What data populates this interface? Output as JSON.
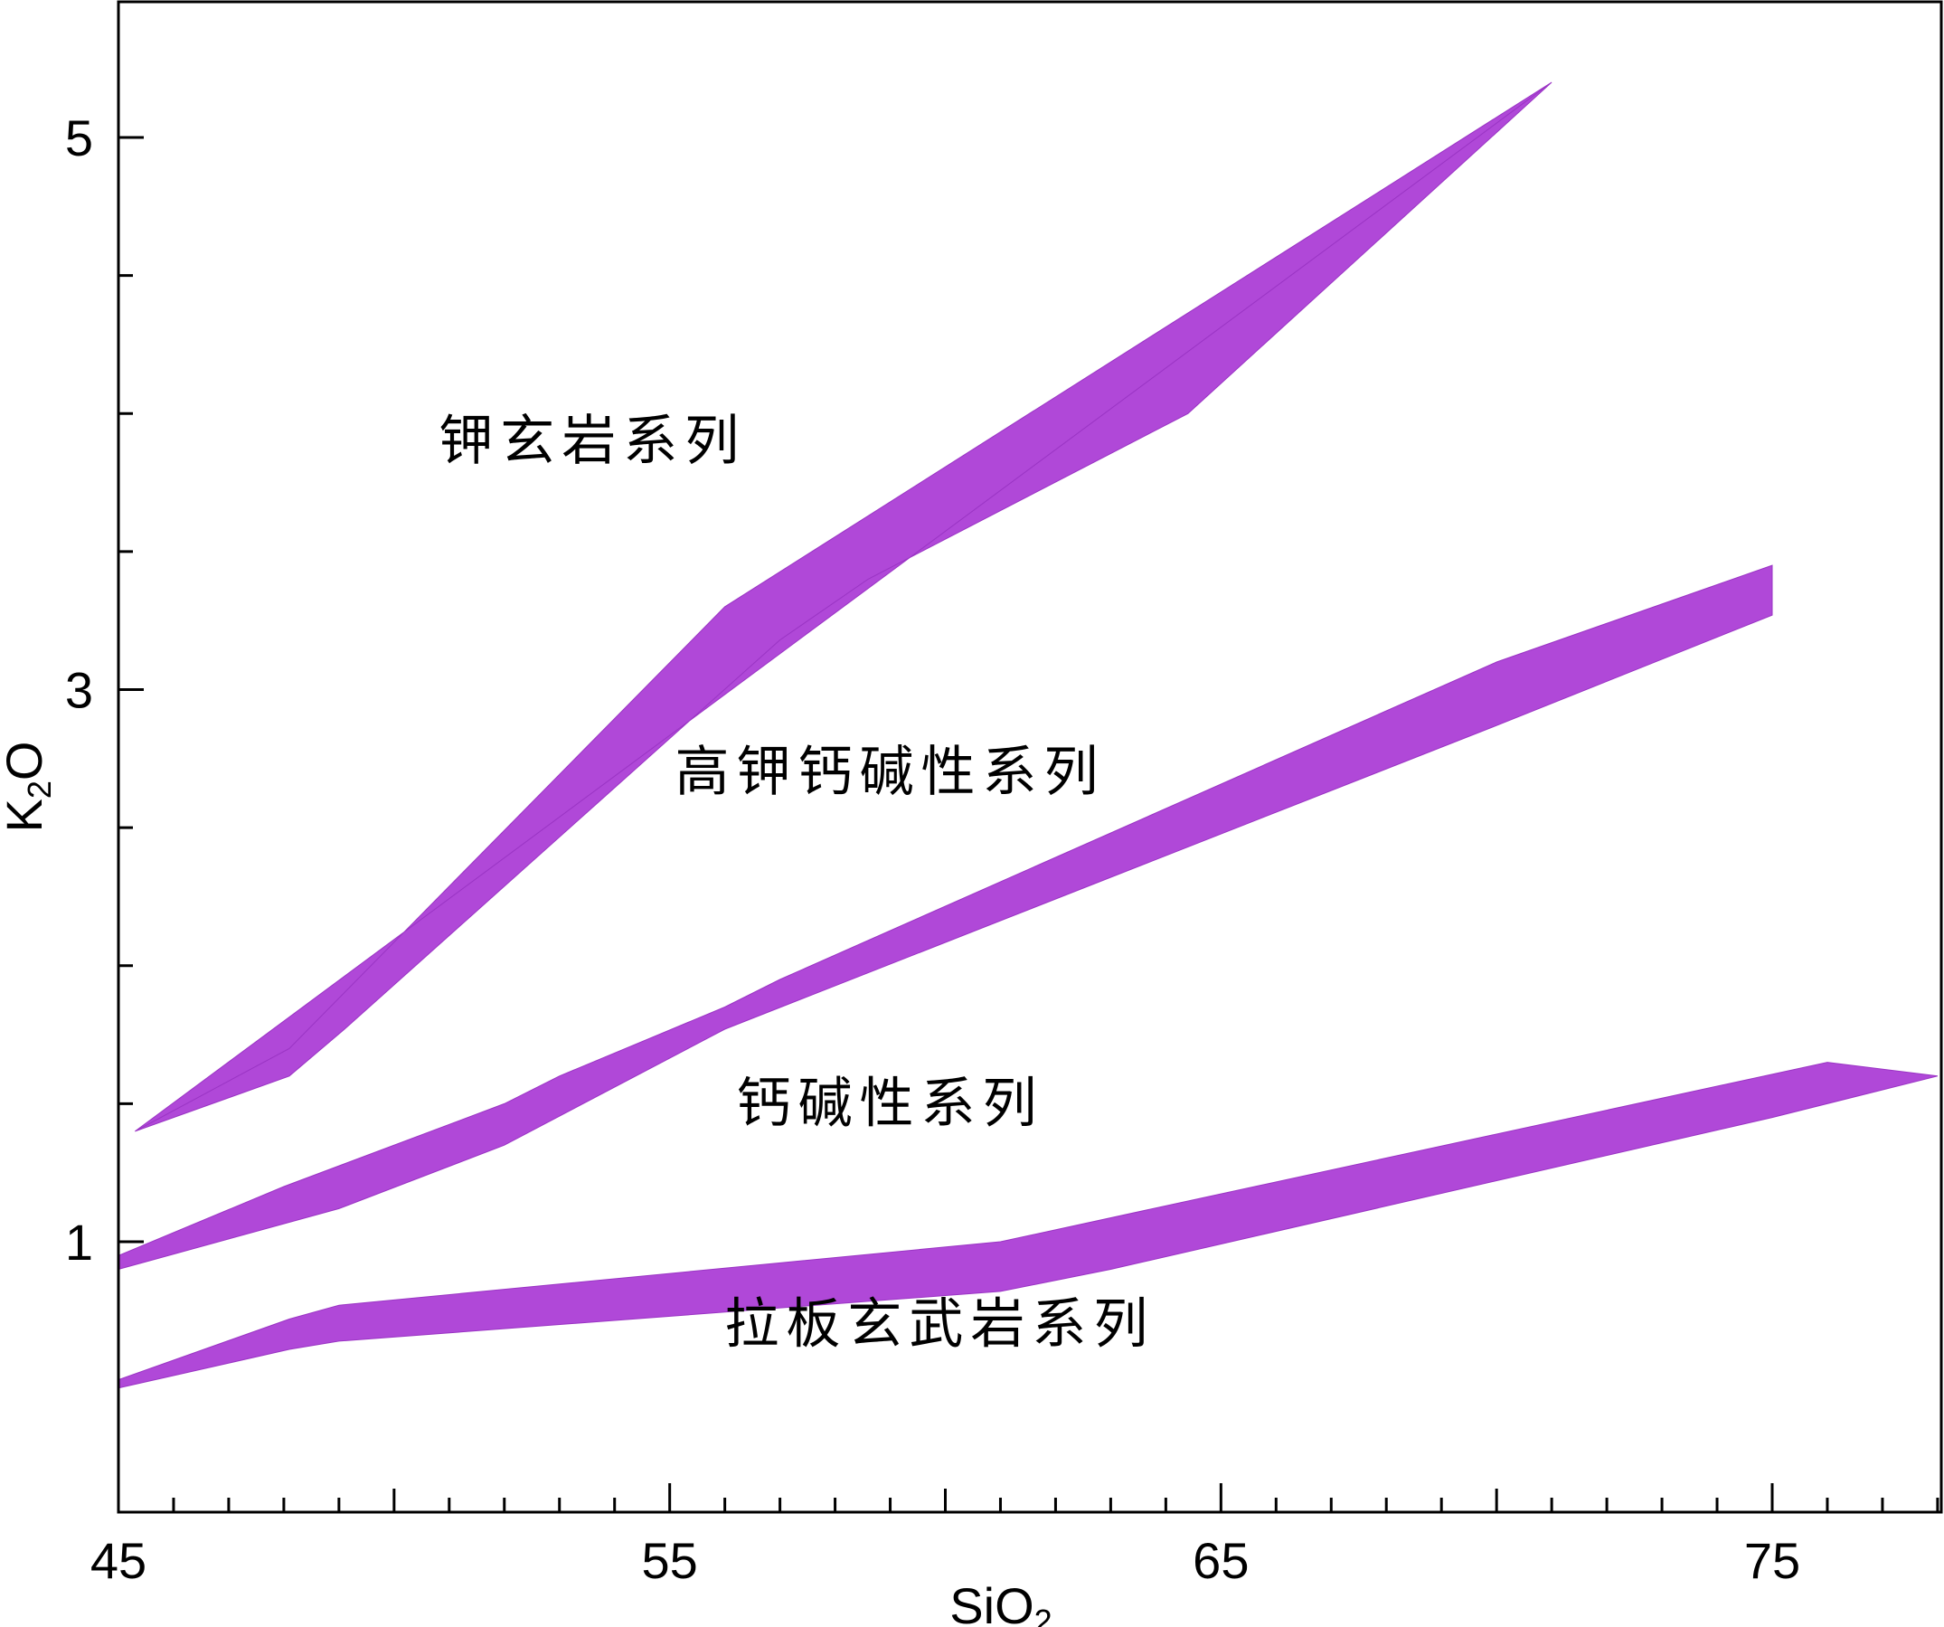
{
  "chart_data": {
    "type": "area",
    "xlabel": "SiO2",
    "ylabel": "K2O",
    "xlim": [
      45,
      78
    ],
    "ylim": [
      0.05,
      5.5
    ],
    "x_ticks_major": [
      45,
      55,
      65,
      75
    ],
    "x_ticks_minor_step": 1,
    "y_ticks_major": [
      1,
      3,
      5
    ],
    "y_ticks_minor": [
      1.5,
      2,
      2.5,
      3.5,
      4,
      4.5
    ],
    "grid": false,
    "bands": [
      {
        "upper": [
          [
            45.3,
            1.4
          ],
          [
            48.1,
            1.7
          ],
          [
            56.0,
            3.3
          ],
          [
            71.0,
            5.2
          ]
        ],
        "lower": [
          [
            45.3,
            1.4
          ],
          [
            48.1,
            1.6
          ],
          [
            49.1,
            1.77
          ],
          [
            57.0,
            3.18
          ],
          [
            58.6,
            3.4
          ],
          [
            64.4,
            4.0
          ],
          [
            71.0,
            5.2
          ]
        ]
      },
      {
        "upper": [
          [
            45.0,
            0.95
          ],
          [
            48.0,
            1.2
          ],
          [
            52.0,
            1.5
          ],
          [
            53.0,
            1.6
          ],
          [
            56.0,
            1.85
          ],
          [
            57.0,
            1.95
          ],
          [
            70.0,
            3.1
          ],
          [
            75.0,
            3.45
          ]
        ],
        "lower": [
          [
            75.0,
            3.45
          ],
          [
            75.0,
            3.27
          ],
          [
            70.0,
            2.87
          ],
          [
            56.0,
            1.77
          ],
          [
            52.0,
            1.35
          ],
          [
            49.0,
            1.12
          ],
          [
            45.0,
            0.9
          ]
        ]
      },
      {
        "upper": [
          [
            45.0,
            0.5
          ],
          [
            48.1,
            0.72
          ],
          [
            49.0,
            0.77
          ],
          [
            61.0,
            1.0
          ],
          [
            76.0,
            1.65
          ],
          [
            78.0,
            1.6
          ]
        ],
        "lower": [
          [
            78.0,
            1.6
          ],
          [
            75.0,
            1.45
          ],
          [
            63.0,
            0.9
          ],
          [
            61.0,
            0.82
          ],
          [
            49.0,
            0.64
          ],
          [
            48.1,
            0.61
          ],
          [
            45.0,
            0.47
          ]
        ]
      }
    ],
    "annotations": [
      {
        "text": "钾玄岩系列",
        "x": 53.6,
        "y": 3.9
      },
      {
        "text": "高钾钙碱性系列",
        "x": 59.0,
        "y": 2.7
      },
      {
        "text": "钙碱性系列",
        "x": 59.0,
        "y": 1.5
      },
      {
        "text": "拉板玄武岩系列",
        "x": 59.9,
        "y": 0.7
      }
    ]
  }
}
